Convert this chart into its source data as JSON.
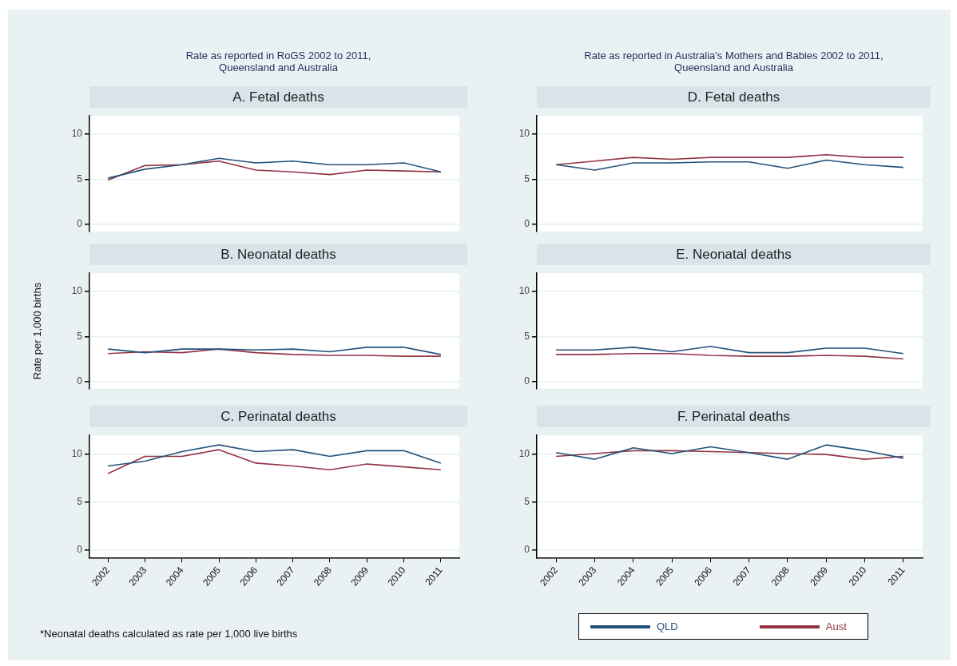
{
  "chart_data": [
    {
      "type": "line",
      "title": "A. Fetal deaths",
      "subtitle": "Rate as reported in RoGS 2002 to 2011,\nQueensland and Australia",
      "categories": [
        "2002",
        "2003",
        "2004",
        "2005",
        "2006",
        "2007",
        "2008",
        "2009",
        "2010",
        "2011"
      ],
      "ylim": [
        -0.8,
        12
      ],
      "yticks": [
        0,
        5,
        10
      ],
      "grid": "y",
      "tick_labels": "y",
      "legend": false,
      "series": [
        {
          "color": "#24527a",
          "values": [
            5.1,
            6.1,
            6.6,
            7.3,
            6.8,
            7.0,
            6.6,
            6.6,
            6.8,
            5.8
          ]
        },
        {
          "color": "#943344",
          "values": [
            4.9,
            6.5,
            6.6,
            7.0,
            6.0,
            5.8,
            5.5,
            6.0,
            5.9,
            5.8
          ]
        }
      ]
    },
    {
      "type": "line",
      "title": "B. Neonatal deaths",
      "ylabel": "Rate per 1,000 births",
      "categories": [
        "2002",
        "2003",
        "2004",
        "2005",
        "2006",
        "2007",
        "2008",
        "2009",
        "2010",
        "2011"
      ],
      "ylim": [
        -0.8,
        12
      ],
      "yticks": [
        0,
        5,
        10
      ],
      "grid": "y",
      "tick_labels": "y",
      "legend": false,
      "series": [
        {
          "color": "#24527a",
          "values": [
            3.6,
            3.2,
            3.6,
            3.6,
            3.5,
            3.6,
            3.3,
            3.8,
            3.8,
            3.0
          ]
        },
        {
          "color": "#943344",
          "values": [
            3.1,
            3.3,
            3.2,
            3.6,
            3.2,
            3.0,
            2.9,
            2.9,
            2.8,
            2.8
          ]
        }
      ]
    },
    {
      "type": "line",
      "title": "C. Perinatal deaths",
      "categories": [
        "2002",
        "2003",
        "2004",
        "2005",
        "2006",
        "2007",
        "2008",
        "2009",
        "2010",
        "2011"
      ],
      "ylim": [
        -0.8,
        12
      ],
      "yticks": [
        0,
        5,
        10
      ],
      "grid": "y",
      "legend": false,
      "annotations": [
        "*Neonatal deaths calculated as rate per 1,000 live births"
      ],
      "series": [
        {
          "color": "#24527a",
          "values": [
            8.8,
            9.3,
            10.3,
            11.0,
            10.3,
            10.5,
            9.8,
            10.4,
            10.4,
            9.1
          ]
        },
        {
          "color": "#943344",
          "values": [
            8.0,
            9.8,
            9.8,
            10.5,
            9.1,
            8.8,
            8.4,
            9.0,
            8.7,
            8.4
          ]
        }
      ]
    },
    {
      "type": "line",
      "title": "D. Fetal deaths",
      "subtitle": "Rate as reported in Australia's Mothers and Babies 2002 to 2011,\nQueensland and Australia",
      "categories": [
        "2002",
        "2003",
        "2004",
        "2005",
        "2006",
        "2007",
        "2008",
        "2009",
        "2010",
        "2011"
      ],
      "ylim": [
        -0.8,
        12
      ],
      "yticks": [
        0,
        5,
        10
      ],
      "grid": "y",
      "tick_labels": "y",
      "legend": false,
      "series": [
        {
          "color": "#24527a",
          "values": [
            6.6,
            6.0,
            6.8,
            6.8,
            6.9,
            6.9,
            6.2,
            7.1,
            6.6,
            6.3
          ]
        },
        {
          "color": "#943344",
          "values": [
            6.6,
            7.0,
            7.4,
            7.2,
            7.4,
            7.4,
            7.4,
            7.7,
            7.4,
            7.4
          ]
        }
      ]
    },
    {
      "type": "line",
      "title": "E. Neonatal deaths",
      "categories": [
        "2002",
        "2003",
        "2004",
        "2005",
        "2006",
        "2007",
        "2008",
        "2009",
        "2010",
        "2011"
      ],
      "ylim": [
        -0.8,
        12
      ],
      "yticks": [
        0,
        5,
        10
      ],
      "grid": "y",
      "tick_labels": "y",
      "legend": false,
      "series": [
        {
          "color": "#24527a",
          "values": [
            3.5,
            3.5,
            3.8,
            3.3,
            3.9,
            3.2,
            3.2,
            3.7,
            3.7,
            3.1
          ]
        },
        {
          "color": "#943344",
          "values": [
            3.0,
            3.0,
            3.1,
            3.1,
            2.9,
            2.8,
            2.8,
            2.9,
            2.8,
            2.5
          ]
        }
      ]
    },
    {
      "type": "line",
      "title": "F. Perinatal deaths",
      "categories": [
        "2002",
        "2003",
        "2004",
        "2005",
        "2006",
        "2007",
        "2008",
        "2009",
        "2010",
        "2011"
      ],
      "ylim": [
        -0.8,
        12
      ],
      "yticks": [
        0,
        5,
        10
      ],
      "grid": "y",
      "legend": "bottom",
      "series": [
        {
          "name": "QLD",
          "color": "#24527a",
          "values": [
            10.2,
            9.5,
            10.7,
            10.1,
            10.8,
            10.2,
            9.5,
            11.0,
            10.4,
            9.6
          ]
        },
        {
          "name": "Aust",
          "color": "#943344",
          "values": [
            9.8,
            10.1,
            10.4,
            10.4,
            10.3,
            10.2,
            10.1,
            10.0,
            9.5,
            9.8
          ]
        }
      ]
    }
  ]
}
